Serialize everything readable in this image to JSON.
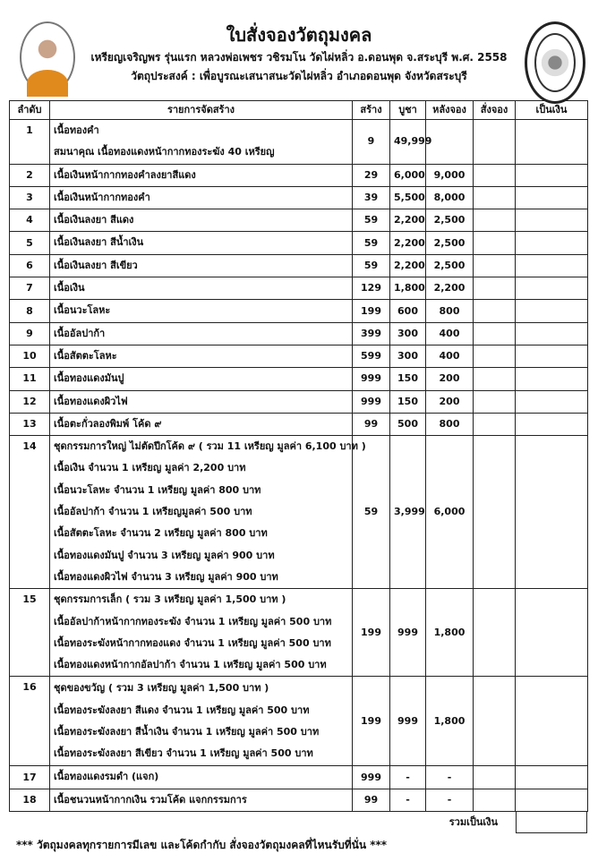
{
  "header": {
    "title": "ใบสั่งจองวัตถุมงคล",
    "subtitle": "เหรียญเจริญพร รุ่นแรก หลวงพ่อเพชร วชิรมโน วัดไผ่หลิ่ว อ.ดอนพุด จ.สระบุรี พ.ศ. 2558",
    "purpose": "วัตถุประสงค์ : เพื่อบูรณะเสนาสนะวัดไผ่หลิ่ว อำเภอดอนพุด จังหวัดสระบุรี"
  },
  "columns": [
    "ลำดับ",
    "รายการจัดสร้าง",
    "สร้าง",
    "บูชา",
    "หลังจอง",
    "สั่งจอง",
    "เป็นเงิน"
  ],
  "rows": [
    {
      "no": "1",
      "lines": [
        "เนื้อทองคำ",
        "สมนาคุณ เนื้อทองแดงหน้ากากทองระฆัง 40 เหรียญ"
      ],
      "made": "9",
      "price": "49,999",
      "after": ""
    },
    {
      "no": "2",
      "lines": [
        "เนื้อเงินหน้ากากทองคำลงยาสีแดง"
      ],
      "made": "29",
      "price": "6,000",
      "after": "9,000"
    },
    {
      "no": "3",
      "lines": [
        "เนื้อเงินหน้ากากทองคำ"
      ],
      "made": "39",
      "price": "5,500",
      "after": "8,000"
    },
    {
      "no": "4",
      "lines": [
        "เนื้อเงินลงยา สีแดง"
      ],
      "made": "59",
      "price": "2,200",
      "after": "2,500"
    },
    {
      "no": "5",
      "lines": [
        "เนื้อเงินลงยา สีน้ำเงิน"
      ],
      "made": "59",
      "price": "2,200",
      "after": "2,500"
    },
    {
      "no": "6",
      "lines": [
        "เนื้อเงินลงยา สีเขียว"
      ],
      "made": "59",
      "price": "2,200",
      "after": "2,500"
    },
    {
      "no": "7",
      "lines": [
        "เนื้อเงิน"
      ],
      "made": "129",
      "price": "1,800",
      "after": "2,200"
    },
    {
      "no": "8",
      "lines": [
        "เนื้อนวะโลหะ"
      ],
      "made": "199",
      "price": "600",
      "after": "800"
    },
    {
      "no": "9",
      "lines": [
        "เนื้ออัลปาก้า"
      ],
      "made": "399",
      "price": "300",
      "after": "400"
    },
    {
      "no": "10",
      "lines": [
        "เนื้อสัตตะโลหะ"
      ],
      "made": "599",
      "price": "300",
      "after": "400"
    },
    {
      "no": "11",
      "lines": [
        "เนื้อทองแดงมันปู"
      ],
      "made": "999",
      "price": "150",
      "after": "200"
    },
    {
      "no": "12",
      "lines": [
        "เนื้อทองแดงผิวไฟ"
      ],
      "made": "999",
      "price": "150",
      "after": "200"
    },
    {
      "no": "13",
      "lines": [
        "เนื้อตะกั่วลองพิมพ์ โค้ด ๙"
      ],
      "made": "99",
      "price": "500",
      "after": "800"
    },
    {
      "no": "14",
      "lines": [
        "ชุดกรรมการใหญ่ ไม่ตัดปีกโค้ด ๙ ( รวม 11 เหรียญ มูลค่า 6,100 บาท )",
        "เนื้อเงิน จำนวน 1 เหรียญ มูลค่า 2,200 บาท",
        "เนื้อนวะโลหะ จำนวน 1 เหรียญ มูลค่า 800  บาท",
        "เนื้ออัลปาก้า จำนวน 1 เหรียญมูลค่า 500 บาท",
        "เนื้อสัตตะโลหะ จำนวน 2  เหรียญ มูลค่า 800 บาท",
        "เนื้อทองแดงมันปู จำนวน 3  เหรียญ มูลค่า 900  บาท",
        "เนื้อทองแดงผิวไฟ จำนวน 3 เหรียญ มูลค่า 900 บาท"
      ],
      "made": "59",
      "price": "3,999",
      "after": "6,000"
    },
    {
      "no": "15",
      "lines": [
        "ชุดกรรมการเล็ก ( รวม 3 เหรียญ มูลค่า 1,500 บาท )",
        "เนื้ออัลปาก้าหน้ากากทองระฆัง จำนวน 1 เหรียญ มูลค่า 500 บาท",
        "เนื้อทองระฆังหน้ากากทองแดง จำนวน 1 เหรียญ มูลค่า 500 บาท",
        "เนื้อทองแดงหน้ากากอัลปาก้า จำนวน 1 เหรียญ มูลค่า 500 บาท"
      ],
      "made": "199",
      "price": "999",
      "after": "1,800"
    },
    {
      "no": "16",
      "lines": [
        "ชุดของขวัญ ( รวม 3 เหรียญ มูลค่า 1,500 บาท )",
        "เนื้อทองระฆังลงยา สีแดง จำนวน 1 เหรียญ มูลค่า 500 บาท",
        "เนื้อทองระฆังลงยา สีน้ำเงิน จำนวน 1 เหรียญ มูลค่า 500 บาท",
        "เนื้อทองระฆังลงยา สีเขียว จำนวน 1 เหรียญ มูลค่า 500 บาท"
      ],
      "made": "199",
      "price": "999",
      "after": "1,800"
    },
    {
      "no": "17",
      "lines": [
        "เนื้อทองแดงรมดำ (แจก)"
      ],
      "made": "999",
      "price": "-",
      "after": "-"
    },
    {
      "no": "18",
      "lines": [
        "เนื้อชนวนหน้ากากเงิน รวมโค้ด แจกกรรมการ"
      ],
      "made": "99",
      "price": "-",
      "after": "-"
    }
  ],
  "total_label": "รวมเป็นเงิน",
  "footer_note": "*** วัตถุมงคลทุกรายการมีเลข และโค้ดกำกับ สั่งจองวัตถุมงคลที่ไหนรับที่นั่น ***"
}
